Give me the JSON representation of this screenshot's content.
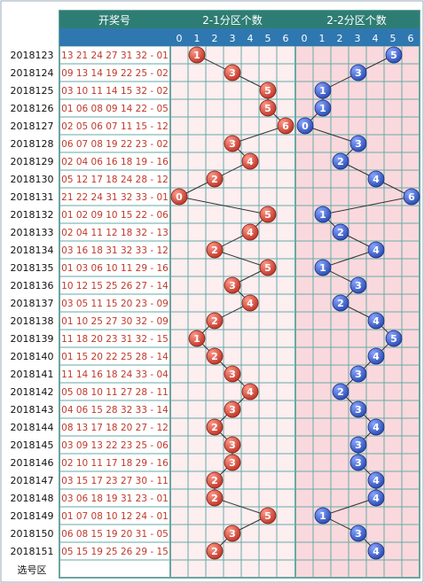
{
  "chart_data": {
    "type": "table",
    "title": "",
    "headers": {
      "draw_numbers": "开奖号",
      "group_a": "2-1分区个数",
      "group_b": "2-2分区个数"
    },
    "column_values": [
      "0",
      "1",
      "2",
      "3",
      "4",
      "5",
      "6"
    ],
    "footer_label": "选号区",
    "rows": [
      {
        "issue": "2018123",
        "numbers": "13 21 24 27 31 32 - 01",
        "a": 1,
        "b": 5
      },
      {
        "issue": "2018124",
        "numbers": "09 13 14 19 22 25 - 02",
        "a": 3,
        "b": 3
      },
      {
        "issue": "2018125",
        "numbers": "03 10 11 14 15 32 - 02",
        "a": 5,
        "b": 1
      },
      {
        "issue": "2018126",
        "numbers": "01 06 08 09 14 22 - 05",
        "a": 5,
        "b": 1
      },
      {
        "issue": "2018127",
        "numbers": "02 05 06 07 11 15 - 12",
        "a": 6,
        "b": 0
      },
      {
        "issue": "2018128",
        "numbers": "06 07 08 19 22 23 - 02",
        "a": 3,
        "b": 3
      },
      {
        "issue": "2018129",
        "numbers": "02 04 06 16 18 19 - 16",
        "a": 4,
        "b": 2
      },
      {
        "issue": "2018130",
        "numbers": "05 12 17 18 24 28 - 12",
        "a": 2,
        "b": 4
      },
      {
        "issue": "2018131",
        "numbers": "21 22 24 31 32 33 - 01",
        "a": 0,
        "b": 6
      },
      {
        "issue": "2018132",
        "numbers": "01 02 09 10 15 22 - 06",
        "a": 5,
        "b": 1
      },
      {
        "issue": "2018133",
        "numbers": "02 04 11 12 18 32 - 13",
        "a": 4,
        "b": 2
      },
      {
        "issue": "2018134",
        "numbers": "03 16 18 31 32 33 - 12",
        "a": 2,
        "b": 4
      },
      {
        "issue": "2018135",
        "numbers": "01 03 06 10 11 29 - 16",
        "a": 5,
        "b": 1
      },
      {
        "issue": "2018136",
        "numbers": "10 12 15 25 26 27 - 14",
        "a": 3,
        "b": 3
      },
      {
        "issue": "2018137",
        "numbers": "03 05 11 15 20 23 - 09",
        "a": 4,
        "b": 2
      },
      {
        "issue": "2018138",
        "numbers": "01 10 25 27 30 32 - 09",
        "a": 2,
        "b": 4
      },
      {
        "issue": "2018139",
        "numbers": "11 18 20 23 31 32 - 15",
        "a": 1,
        "b": 5
      },
      {
        "issue": "2018140",
        "numbers": "01 15 20 22 25 28 - 14",
        "a": 2,
        "b": 4
      },
      {
        "issue": "2018141",
        "numbers": "11 14 16 18 24 33 - 04",
        "a": 3,
        "b": 3
      },
      {
        "issue": "2018142",
        "numbers": "05 08 10 11 27 28 - 11",
        "a": 4,
        "b": 2
      },
      {
        "issue": "2018143",
        "numbers": "04 06 15 28 32 33 - 14",
        "a": 3,
        "b": 3
      },
      {
        "issue": "2018144",
        "numbers": "08 13 17 18 20 27 - 12",
        "a": 2,
        "b": 4
      },
      {
        "issue": "2018145",
        "numbers": "03 09 13 22 23 25 - 06",
        "a": 3,
        "b": 3
      },
      {
        "issue": "2018146",
        "numbers": "02 10 11 17 18 29 - 16",
        "a": 3,
        "b": 3
      },
      {
        "issue": "2018147",
        "numbers": "03 15 17 23 27 30 - 11",
        "a": 2,
        "b": 4
      },
      {
        "issue": "2018148",
        "numbers": "03 06 18 19 31 23 - 01",
        "a": 2,
        "b": 4
      },
      {
        "issue": "2018149",
        "numbers": "01 07 08 10 12 24 - 01",
        "a": 5,
        "b": 1
      },
      {
        "issue": "2018150",
        "numbers": "06 08 15 19 20 31 - 05",
        "a": 3,
        "b": 3
      },
      {
        "issue": "2018151",
        "numbers": "05 15 19 25 26 29 - 15",
        "a": 2,
        "b": 4
      }
    ],
    "colors": {
      "header_bg": "#2e7d74",
      "subheader_bg": "#2f77b0",
      "frame": "#6aa6a0",
      "grid": "#66aaa6",
      "cell_a": "#fdeef0",
      "cell_b": "#f9d9dd",
      "numbers_text": "#c0392b",
      "ball_red": "#c0392b",
      "ball_blue": "#2f4fb5"
    }
  }
}
